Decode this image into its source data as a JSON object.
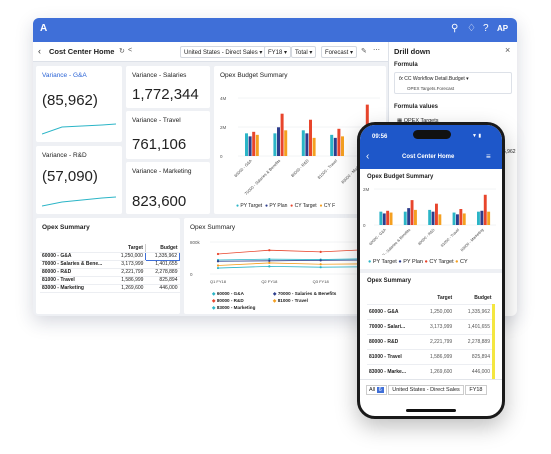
{
  "app": {
    "logo": "A",
    "icons": [
      "search-icon",
      "bell-icon",
      "help-icon"
    ],
    "user": "AP",
    "accent": "#3f6fd8"
  },
  "subbar": {
    "title": "Cost Center Home",
    "filters": [
      "United States - Direct Sales",
      "FY18",
      "Total",
      "Forecast"
    ]
  },
  "kpis": {
    "ga": {
      "label": "Variance - G&A",
      "value": "(85,962)"
    },
    "rd": {
      "label": "Variance - R&D",
      "value": "(57,090)"
    },
    "salaries": {
      "label": "Variance - Salaries",
      "value": "1,772,344"
    },
    "travel": {
      "label": "Variance - Travel",
      "value": "761,106"
    },
    "marketing": {
      "label": "Variance - Marketing",
      "value": "823,600"
    }
  },
  "opex_budget": {
    "title": "Opex Budget Summary",
    "chart_data": {
      "type": "bar",
      "y_ticks": [
        "4M",
        "2M",
        "0"
      ],
      "ylim": [
        0,
        4.5
      ],
      "categories": [
        "60000 - G&A",
        "70000 - Salaries & Benefits",
        "80000 - R&D",
        "81000 - Travel",
        "83000 - Marketing"
      ],
      "series": [
        {
          "name": "PY Target",
          "color": "#2bb5c7",
          "values": [
            1.5,
            1.5,
            1.7,
            1.4,
            1.5
          ]
        },
        {
          "name": "PY Plan",
          "color": "#2d3d8c",
          "values": [
            1.3,
            1.9,
            1.5,
            1.2,
            1.6
          ]
        },
        {
          "name": "CY Target",
          "color": "#e8452c",
          "values": [
            1.6,
            2.8,
            2.4,
            1.8,
            3.4
          ]
        },
        {
          "name": "CY Forecast",
          "color": "#f5a020",
          "values": [
            1.4,
            1.7,
            1.2,
            1.3,
            1.5
          ]
        }
      ],
      "legend": [
        "PY Target",
        "PY Plan",
        "CY Target",
        "CY F"
      ]
    }
  },
  "opex_table": {
    "title": "Opex Summary",
    "headers": [
      "",
      "Target",
      "Budget"
    ],
    "rows": [
      [
        "60000 - G&A",
        "1,250,000",
        "1,335,962"
      ],
      [
        "70000 - Salaries & Bene...",
        "3,173,999",
        "1,401,655"
      ],
      [
        "80000 - R&D",
        "2,221,799",
        "2,278,889"
      ],
      [
        "81000 - Travel",
        "1,586,999",
        "825,894"
      ],
      [
        "83000 - Marketing",
        "1,269,600",
        "446,000"
      ]
    ]
  },
  "opex_line": {
    "title": "Opex Summary",
    "chart_data": {
      "type": "line",
      "y_ticks": [
        "800k",
        "0"
      ],
      "categories": [
        "Q1 FY18",
        "Q2 FY18",
        "Q3 FY18",
        "Q4 FY18"
      ],
      "series": [
        {
          "name": "60000 - G&A",
          "color": "#2bb5c7",
          "values": [
            330,
            350,
            340,
            360
          ]
        },
        {
          "name": "70000 - Salaries & Benefits",
          "color": "#2d3d8c",
          "values": [
            300,
            310,
            320,
            330
          ]
        },
        {
          "name": "80000 - R&D",
          "color": "#e8452c",
          "values": [
            470,
            560,
            520,
            580
          ]
        },
        {
          "name": "81000 - Travel",
          "color": "#f5a020",
          "values": [
            200,
            260,
            230,
            240
          ]
        },
        {
          "name": "83000 - Marketing",
          "color": "#2bb5c7",
          "values": [
            140,
            180,
            160,
            170
          ]
        }
      ],
      "legend": [
        "60000 - G&A",
        "70000 - Salaries & Benefits",
        "80000 - R&D",
        "81000 - Travel",
        "83000 - Marketing"
      ]
    }
  },
  "drill": {
    "title": "Drill down",
    "formula_label": "Formula",
    "formula_line1": "CC Workflow Detail.Budget",
    "formula_line2": "OPEX Targets.Forecast",
    "values_label": "Formula values",
    "values_item": "OPEX Targets",
    "side_value": "5,962"
  },
  "phone": {
    "time": "09:56",
    "title": "Cost Center Home",
    "chart_title": "Opex Budget Summary",
    "y_ticks": [
      "2M",
      "0"
    ],
    "legend": [
      "PY Target",
      "PY Plan",
      "CY Target",
      "CY"
    ],
    "table_title": "Opex Summary",
    "headers": [
      "",
      "Target",
      "Budget"
    ],
    "rows": [
      [
        "60000 - G&A",
        "1,250,000",
        "1,335,962"
      ],
      [
        "70000 - Salari...",
        "3,173,999",
        "1,401,655"
      ],
      [
        "80000 - R&D",
        "2,221,799",
        "2,278,889"
      ],
      [
        "81000 - Travel",
        "1,586,999",
        "825,894"
      ],
      [
        "83000 - Marke...",
        "1,269,600",
        "446,000"
      ]
    ],
    "footer_all": "All",
    "footer_count": "6",
    "footer_region": "United States - Direct Sales",
    "footer_year": "FY18"
  }
}
